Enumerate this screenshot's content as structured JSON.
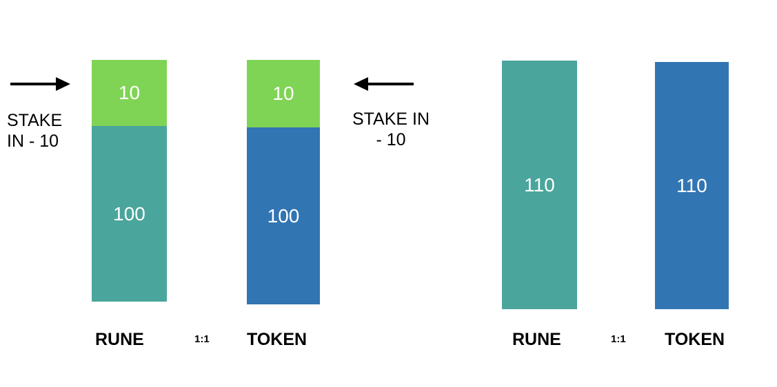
{
  "colors": {
    "stake": "#80d455",
    "rune": "#4aa59c",
    "token": "#3275b3"
  },
  "before": {
    "rune": {
      "stake_value": "10",
      "base_value": "100",
      "label": "RUNE"
    },
    "token": {
      "stake_value": "10",
      "base_value": "100",
      "label": "TOKEN"
    },
    "ratio": "1:1",
    "left_stake": {
      "line1": "STAKE",
      "line2": "IN - 10"
    },
    "right_stake": {
      "line1": "STAKE IN",
      "line2": "- 10"
    }
  },
  "after": {
    "rune": {
      "value": "110",
      "label": "RUNE"
    },
    "token": {
      "value": "110",
      "label": "TOKEN"
    },
    "ratio": "1:1"
  }
}
